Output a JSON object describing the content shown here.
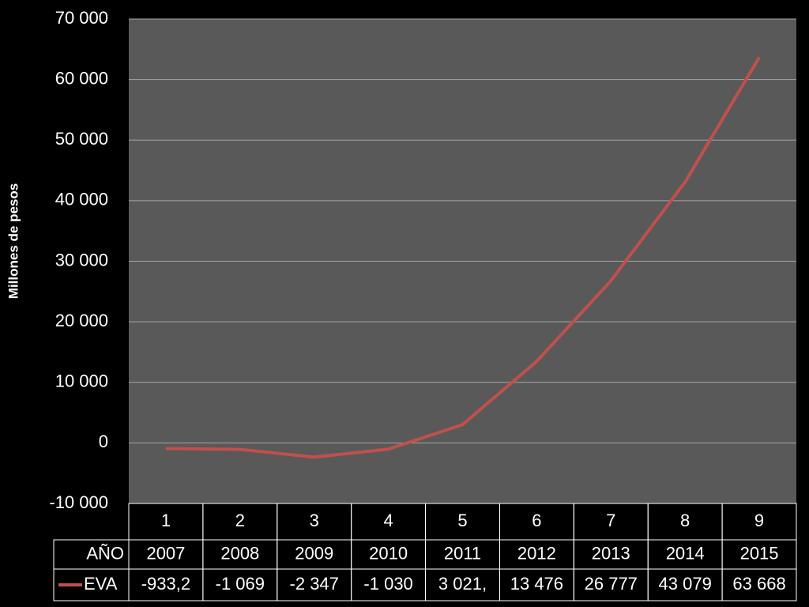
{
  "chart_data": {
    "type": "line",
    "y_label": "Millones de pesos",
    "categories": [
      "1",
      "2",
      "3",
      "4",
      "5",
      "6",
      "7",
      "8",
      "9"
    ],
    "data_table": {
      "header": "AÑO",
      "years": [
        2007,
        2008,
        2009,
        2010,
        2011,
        2012,
        2013,
        2014,
        2015
      ]
    },
    "series": [
      {
        "name": "EVA",
        "color": "#c0504d",
        "values": [
          -933.2,
          -1069,
          -2347,
          -1030,
          3021,
          13476,
          26777,
          43079,
          63668
        ],
        "value_labels": [
          "-933,2",
          "-1 069",
          "-2 347",
          "-1 030",
          "3 021,",
          "13 476",
          "26 777",
          "43 079",
          "63 668"
        ]
      }
    ],
    "ylim": [
      -10000,
      70000
    ],
    "yticks": [
      {
        "value": -10000,
        "label": "-10 000"
      },
      0,
      {
        "value": 10000,
        "label": "10 000"
      },
      {
        "value": 20000,
        "label": "20 000"
      },
      {
        "value": 30000,
        "label": "30 000"
      },
      {
        "value": 40000,
        "label": "40 000"
      },
      {
        "value": 50000,
        "label": "50 000"
      },
      {
        "value": 60000,
        "label": "60 000"
      },
      {
        "value": 70000,
        "label": "70 000"
      }
    ],
    "grid": true
  }
}
